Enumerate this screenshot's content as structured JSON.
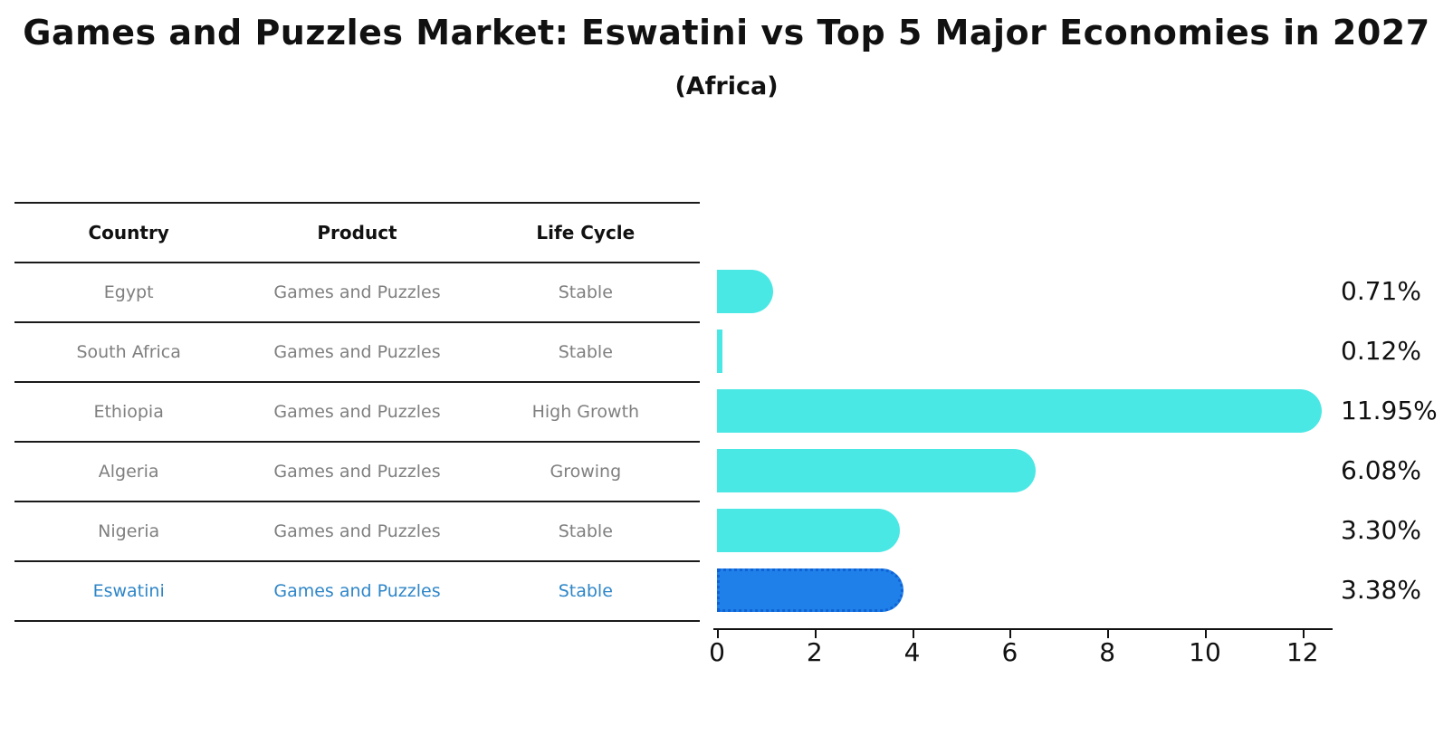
{
  "title": "Games and Puzzles Market: Eswatini vs Top 5 Major Economies in 2027",
  "subtitle": "(Africa)",
  "table": {
    "headers": [
      "Country",
      "Product",
      "Life Cycle"
    ],
    "rows": [
      {
        "country": "Egypt",
        "product": "Games and Puzzles",
        "life_cycle": "Stable",
        "highlight": false
      },
      {
        "country": "South Africa",
        "product": "Games and Puzzles",
        "life_cycle": "Stable",
        "highlight": false
      },
      {
        "country": "Ethiopia",
        "product": "Games and Puzzles",
        "life_cycle": "High Growth",
        "highlight": false
      },
      {
        "country": "Algeria",
        "product": "Games and Puzzles",
        "life_cycle": "Growing",
        "highlight": false
      },
      {
        "country": "Nigeria",
        "product": "Games and Puzzles",
        "life_cycle": "Stable",
        "highlight": false
      },
      {
        "country": "Eswatini",
        "product": "Games and Puzzles",
        "life_cycle": "Stable",
        "highlight": true
      }
    ]
  },
  "chart_data": {
    "type": "bar",
    "orientation": "horizontal",
    "title": "Games and Puzzles Market: Eswatini vs Top 5 Major Economies in 2027",
    "subtitle": "(Africa)",
    "categories": [
      "Egypt",
      "South Africa",
      "Ethiopia",
      "Algeria",
      "Nigeria",
      "Eswatini"
    ],
    "values": [
      0.71,
      0.12,
      11.95,
      6.08,
      3.3,
      3.38
    ],
    "value_labels": [
      "0.71%",
      "0.12%",
      "11.95%",
      "6.08%",
      "3.30%",
      "3.38%"
    ],
    "xticks": [
      0,
      2,
      4,
      6,
      8,
      10,
      12
    ],
    "xlim": [
      0,
      12.5
    ],
    "grid": false,
    "legend": false,
    "bar_color": "#4ae8e4",
    "highlight_color": "#1e80e8",
    "highlight_border_color": "#0f62d6",
    "highlight_index": 5,
    "highlight_text_color": "#2e86c8",
    "body_text_color": "#7f7f7f",
    "axis_text_color": "#111111"
  }
}
